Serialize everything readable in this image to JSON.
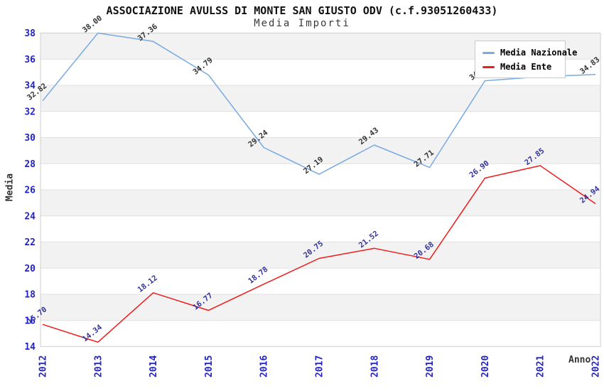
{
  "header": {
    "title": "ASSOCIAZIONE AVULSS DI MONTE SAN GIUSTO ODV (c.f.93051260433)",
    "subtitle": "Media Importi"
  },
  "chart_data": {
    "type": "line",
    "title": "ASSOCIAZIONE AVULSS DI MONTE SAN GIUSTO ODV (c.f.93051260433)",
    "subtitle": "Media Importi",
    "xlabel": "Anno",
    "ylabel": "Media",
    "categories": [
      "2012",
      "2013",
      "2014",
      "2015",
      "2016",
      "2017",
      "2018",
      "2019",
      "2020",
      "2021",
      "2022"
    ],
    "ylim": [
      14,
      38
    ],
    "ytick_step": 2,
    "grid": "horizontal-bands",
    "legend_position": "top-right",
    "series": [
      {
        "name": "Media Nazionale",
        "color": "#78aae1",
        "label_color": "#333333",
        "values": [
          32.82,
          38.0,
          37.36,
          34.79,
          29.24,
          27.19,
          29.43,
          27.71,
          34.35,
          34.66,
          34.83
        ]
      },
      {
        "name": "Media Ente",
        "color": "#ee1c1c",
        "label_color": "#333399",
        "values": [
          15.7,
          14.34,
          18.12,
          16.77,
          18.78,
          20.75,
          21.52,
          20.68,
          26.9,
          27.85,
          24.94
        ]
      }
    ]
  },
  "colors": {
    "axis_tick_labels": "#2222cc",
    "band_fill": "#f2f2f2",
    "gridline": "#e0e0e0",
    "plot_border": "#cfcfcf",
    "plot_background": "#ffffff",
    "title_text": "#111111",
    "axis_title_text": "#333333"
  }
}
